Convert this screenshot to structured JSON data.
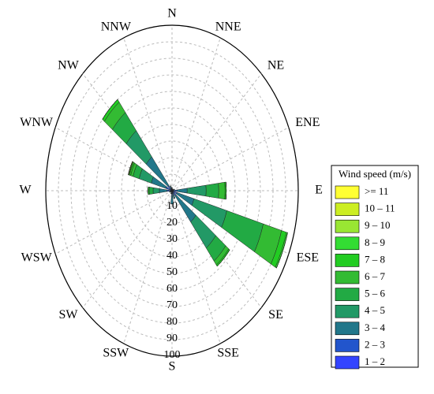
{
  "chart_data": {
    "type": "windrose",
    "categories": [
      "N",
      "NNE",
      "NE",
      "ENE",
      "E",
      "ESE",
      "SE",
      "SSE",
      "S",
      "SSW",
      "SW",
      "WSW",
      "W",
      "WNW",
      "NW",
      "NNW"
    ],
    "ylim": [
      0,
      100
    ],
    "yticks": [
      10,
      20,
      30,
      40,
      50,
      60,
      70,
      80,
      90,
      100
    ],
    "grid": true,
    "legend_title": "Wind speed (m/s)",
    "legend_position": "right",
    "series": [
      {
        "name": ">= 11",
        "color": "#ffff33",
        "values": [
          0,
          0,
          0,
          0,
          0,
          0,
          0,
          0,
          0,
          0,
          0,
          0,
          0,
          0,
          0,
          0
        ]
      },
      {
        "name": "10 – 11",
        "color": "#ccee22",
        "values": [
          0,
          0,
          0,
          0,
          0,
          0,
          0,
          0,
          0,
          0,
          0,
          0,
          0,
          0,
          0,
          0
        ]
      },
      {
        "name": "9 – 10",
        "color": "#99e633",
        "values": [
          0,
          0,
          0,
          0,
          0,
          0,
          0,
          0,
          0,
          0,
          0,
          0,
          0,
          0.5,
          0,
          0
        ]
      },
      {
        "name": "8 – 9",
        "color": "#33dd33",
        "values": [
          0,
          0,
          0,
          0,
          0,
          1,
          0,
          0,
          0,
          0,
          0,
          0,
          0,
          0.5,
          0,
          0
        ]
      },
      {
        "name": "7 – 8",
        "color": "#22cc22",
        "values": [
          0,
          0,
          0,
          0,
          1,
          4,
          1,
          0,
          0,
          0,
          0,
          0,
          0,
          1,
          2,
          0
        ]
      },
      {
        "name": "6 – 7",
        "color": "#33bb33",
        "values": [
          0,
          0,
          0,
          0,
          5,
          15,
          3,
          0,
          0,
          0,
          0,
          0,
          1,
          2,
          8,
          0
        ]
      },
      {
        "name": "5 – 6",
        "color": "#22aa44",
        "values": [
          0,
          0,
          0,
          0,
          10,
          30,
          10,
          0,
          0,
          0,
          0,
          0,
          3,
          5,
          14,
          0
        ]
      },
      {
        "name": "4 – 5",
        "color": "#229966",
        "values": [
          0,
          0,
          0,
          0,
          15,
          27,
          20,
          0,
          0,
          0,
          0,
          0,
          5,
          10,
          20,
          0
        ]
      },
      {
        "name": "3 – 4",
        "color": "#22778a",
        "values": [
          1,
          0,
          0,
          1,
          8,
          14,
          20,
          3,
          5,
          1,
          0,
          1,
          6,
          12,
          22,
          2
        ]
      },
      {
        "name": "2 – 3",
        "color": "#2255cc",
        "values": [
          1,
          1,
          1,
          1,
          3,
          3,
          3,
          2,
          3,
          1,
          1,
          1,
          3,
          4,
          3,
          1
        ]
      },
      {
        "name": "1 – 2",
        "color": "#3344ff",
        "values": [
          0,
          0,
          0,
          0,
          1,
          1,
          1,
          0,
          0,
          0,
          0,
          0,
          1,
          1,
          1,
          0
        ]
      }
    ]
  }
}
